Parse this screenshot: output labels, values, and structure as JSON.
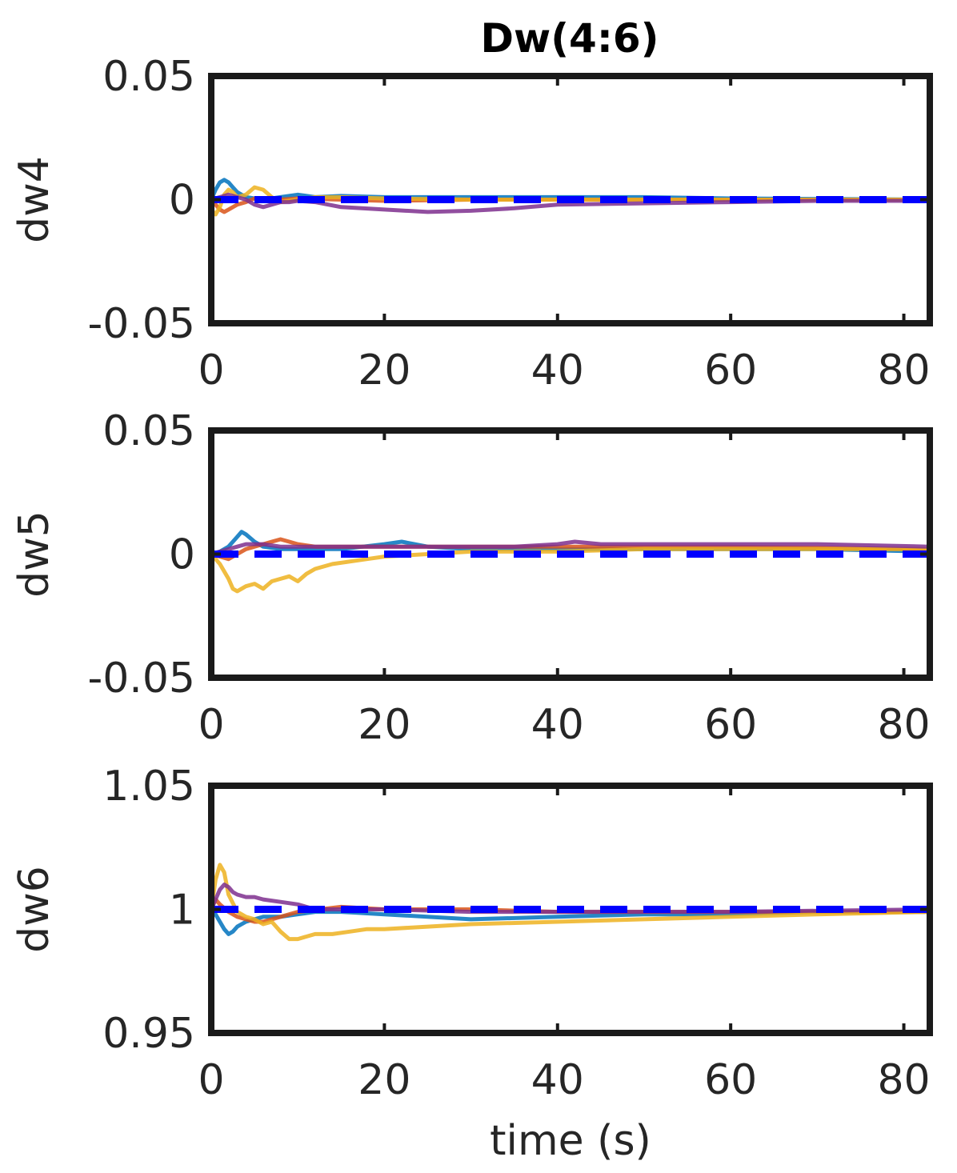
{
  "figure_title": "Dw(4:6)",
  "chart_data": [
    {
      "type": "line",
      "title": "Dw(4:6)",
      "ylabel": "dw4",
      "xlabel": "",
      "xlim": [
        0,
        83
      ],
      "ylim": [
        -0.05,
        0.05
      ],
      "xticks": [
        0,
        20,
        40,
        60,
        80
      ],
      "xtick_labels": [
        "0",
        "20",
        "40",
        "60",
        "80"
      ],
      "yticks": [
        -0.05,
        0,
        0.05
      ],
      "ytick_labels": [
        "-0.05",
        "0",
        "0.05"
      ],
      "grid": false,
      "reference": {
        "value": 0,
        "style": "dashed",
        "color": "#0000ff"
      },
      "series": [
        {
          "color": "#0072BD",
          "x": [
            0,
            0.5,
            1,
            1.5,
            2,
            2.5,
            3,
            4,
            5,
            6,
            7,
            8,
            10,
            12,
            15,
            20,
            25,
            30,
            40,
            50,
            60,
            70,
            83
          ],
          "y": [
            0,
            0.004,
            0.007,
            0.008,
            0.007,
            0.005,
            0.003,
            0.001,
            0.0005,
            0.0002,
            0.0005,
            0.001,
            0.002,
            0.001,
            0.0015,
            0.001,
            0.001,
            0.001,
            0.001,
            0.001,
            0.0005,
            0.0003,
            0
          ]
        },
        {
          "color": "#D95319",
          "x": [
            0,
            0.5,
            1,
            1.5,
            2,
            3,
            4,
            5,
            6,
            8,
            10,
            15,
            20,
            30,
            40,
            60,
            83
          ],
          "y": [
            0,
            -0.002,
            -0.004,
            -0.005,
            -0.004,
            -0.002,
            -0.001,
            0.0005,
            0.0003,
            0,
            0.0005,
            0,
            -0.0005,
            0,
            0,
            0,
            0
          ]
        },
        {
          "color": "#EDB120",
          "x": [
            0,
            0.5,
            1,
            1.5,
            2,
            2.5,
            3,
            4,
            5,
            6,
            7,
            8,
            10,
            12,
            15,
            20,
            30,
            40,
            60,
            83
          ],
          "y": [
            -0.004,
            -0.006,
            -0.003,
            0.002,
            0.004,
            0.003,
            0.001,
            0.002,
            0.005,
            0.004,
            0.001,
            -0.001,
            0,
            0.001,
            0.001,
            0.0005,
            0,
            0,
            0,
            0
          ]
        },
        {
          "color": "#7E2F8E",
          "x": [
            0,
            1,
            2,
            3,
            4,
            5,
            6,
            7,
            8,
            9,
            10,
            12,
            15,
            20,
            25,
            30,
            35,
            40,
            50,
            60,
            70,
            83
          ],
          "y": [
            0,
            0.001,
            0.002,
            0.001,
            0,
            -0.002,
            -0.003,
            -0.002,
            -0.001,
            -0.001,
            -0.0005,
            -0.001,
            -0.003,
            -0.004,
            -0.005,
            -0.0045,
            -0.0035,
            -0.002,
            -0.0015,
            -0.001,
            -0.0005,
            -0.0005
          ]
        }
      ]
    },
    {
      "type": "line",
      "ylabel": "dw5",
      "xlabel": "",
      "xlim": [
        0,
        83
      ],
      "ylim": [
        -0.05,
        0.05
      ],
      "xticks": [
        0,
        20,
        40,
        60,
        80
      ],
      "xtick_labels": [
        "0",
        "20",
        "40",
        "60",
        "80"
      ],
      "yticks": [
        -0.05,
        0,
        0.05
      ],
      "ytick_labels": [
        "-0.05",
        "0",
        "0.05"
      ],
      "grid": false,
      "reference": {
        "value": 0,
        "style": "dashed",
        "color": "#0000ff"
      },
      "series": [
        {
          "color": "#0072BD",
          "x": [
            0,
            1,
            2,
            3,
            3.5,
            4,
            5,
            6,
            8,
            10,
            15,
            20,
            22,
            25,
            30,
            40,
            50,
            60,
            70,
            83
          ],
          "y": [
            0,
            0.001,
            0.003,
            0.007,
            0.009,
            0.008,
            0.005,
            0.003,
            0.002,
            0.002,
            0.002,
            0.004,
            0.005,
            0.003,
            0.002,
            0.002,
            0.002,
            0.002,
            0.002,
            0.001
          ]
        },
        {
          "color": "#D95319",
          "x": [
            0,
            1,
            2,
            3,
            4,
            5,
            6,
            7,
            8,
            9,
            10,
            12,
            15,
            20,
            30,
            40,
            60,
            83
          ],
          "y": [
            0,
            -0.001,
            -0.002,
            0,
            0.002,
            0.003,
            0.004,
            0.005,
            0.006,
            0.005,
            0.004,
            0.003,
            0.003,
            0.003,
            0.003,
            0.003,
            0.003,
            0.002
          ]
        },
        {
          "color": "#EDB120",
          "x": [
            0,
            1,
            2,
            2.5,
            3,
            4,
            5,
            6,
            7,
            8,
            9,
            10,
            11,
            12,
            14,
            16,
            18,
            20,
            25,
            30,
            40,
            50,
            60,
            83
          ],
          "y": [
            0,
            -0.004,
            -0.01,
            -0.014,
            -0.015,
            -0.013,
            -0.012,
            -0.014,
            -0.011,
            -0.01,
            -0.009,
            -0.011,
            -0.008,
            -0.006,
            -0.004,
            -0.003,
            -0.002,
            -0.001,
            0,
            0.001,
            0.001,
            0.002,
            0.002,
            0.002
          ]
        },
        {
          "color": "#7E2F8E",
          "x": [
            0,
            1,
            2,
            3,
            4,
            5,
            6,
            8,
            10,
            15,
            20,
            25,
            30,
            35,
            40,
            42,
            45,
            50,
            60,
            70,
            83
          ],
          "y": [
            0,
            0.001,
            0.002,
            0.003,
            0.004,
            0.004,
            0.004,
            0.003,
            0.003,
            0.003,
            0.003,
            0.003,
            0.003,
            0.003,
            0.004,
            0.005,
            0.004,
            0.004,
            0.004,
            0.004,
            0.003
          ]
        }
      ]
    },
    {
      "type": "line",
      "ylabel": "dw6",
      "xlabel": "time (s)",
      "xlim": [
        0,
        83
      ],
      "ylim": [
        0.95,
        1.05
      ],
      "xticks": [
        0,
        20,
        40,
        60,
        80
      ],
      "xtick_labels": [
        "0",
        "20",
        "40",
        "60",
        "80"
      ],
      "yticks": [
        0.95,
        1,
        1.05
      ],
      "ytick_labels": [
        "0.95",
        "1",
        "1.05"
      ],
      "grid": false,
      "reference": {
        "value": 1,
        "style": "dashed",
        "color": "#0000ff"
      },
      "series": [
        {
          "color": "#0072BD",
          "x": [
            0,
            0.5,
            1,
            1.5,
            2,
            2.5,
            3,
            4,
            5,
            6,
            8,
            10,
            12,
            15,
            20,
            30,
            40,
            50,
            60,
            70,
            83
          ],
          "y": [
            1.0,
            0.998,
            0.995,
            0.992,
            0.99,
            0.991,
            0.993,
            0.995,
            0.996,
            0.997,
            0.997,
            0.998,
            0.999,
            0.999,
            0.998,
            0.996,
            0.997,
            0.998,
            0.998,
            0.999,
            0.999
          ]
        },
        {
          "color": "#D95319",
          "x": [
            0,
            0.5,
            1,
            2,
            3,
            4,
            5,
            6,
            8,
            10,
            15,
            20,
            30,
            40,
            60,
            83
          ],
          "y": [
            1.0,
            1.004,
            1.002,
            0.999,
            0.997,
            0.996,
            0.995,
            0.995,
            0.997,
            0.999,
            1.001,
            1.0,
            1.0,
            0.999,
            0.999,
            0.999
          ]
        },
        {
          "color": "#EDB120",
          "x": [
            0,
            0.5,
            1,
            1.5,
            2,
            3,
            4,
            5,
            6,
            7,
            8,
            9,
            10,
            12,
            14,
            16,
            18,
            20,
            25,
            30,
            40,
            50,
            60,
            70,
            83
          ],
          "y": [
            1.0,
            1.012,
            1.018,
            1.015,
            1.006,
            0.999,
            0.997,
            0.996,
            0.994,
            0.995,
            0.991,
            0.988,
            0.988,
            0.99,
            0.99,
            0.991,
            0.992,
            0.992,
            0.993,
            0.994,
            0.995,
            0.996,
            0.997,
            0.998,
            0.999
          ]
        },
        {
          "color": "#7E2F8E",
          "x": [
            0,
            0.5,
            1,
            1.5,
            2,
            2.5,
            3,
            4,
            5,
            6,
            8,
            10,
            12,
            15,
            20,
            30,
            40,
            60,
            83
          ],
          "y": [
            1.0,
            1.004,
            1.008,
            1.01,
            1.009,
            1.007,
            1.006,
            1.005,
            1.005,
            1.004,
            1.003,
            1.002,
            1.0,
            1.0,
            1.0,
            0.999,
            0.999,
            0.999,
            1.0
          ]
        }
      ]
    }
  ]
}
